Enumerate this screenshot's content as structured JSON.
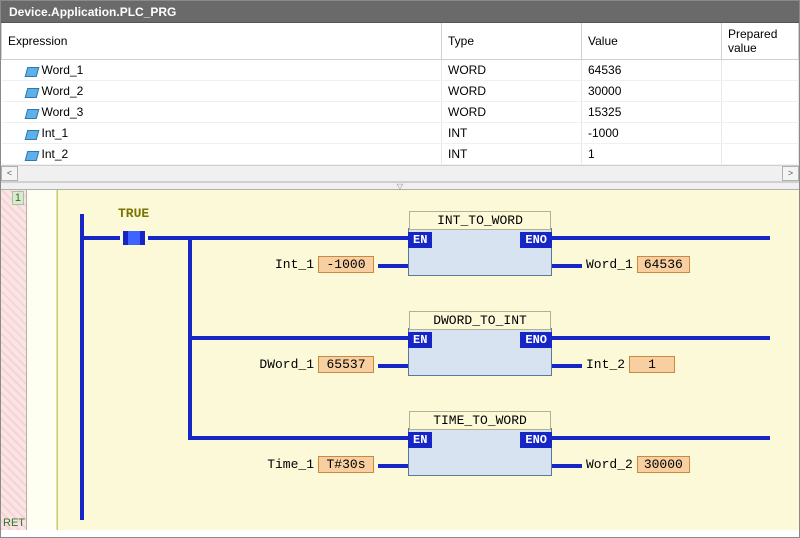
{
  "title": "Device.Application.PLC_PRG",
  "columns": {
    "expression": "Expression",
    "type": "Type",
    "value": "Value",
    "prepared": "Prepared value"
  },
  "variables": [
    {
      "name": "Word_1",
      "type": "WORD",
      "value": "64536",
      "prepared": ""
    },
    {
      "name": "Word_2",
      "type": "WORD",
      "value": "30000",
      "prepared": ""
    },
    {
      "name": "Word_3",
      "type": "WORD",
      "value": "15325",
      "prepared": ""
    },
    {
      "name": "Int_1",
      "type": "INT",
      "value": "-1000",
      "prepared": ""
    },
    {
      "name": "Int_2",
      "type": "INT",
      "value": "1",
      "prepared": ""
    }
  ],
  "gutter": {
    "network": "1",
    "ret": "RET"
  },
  "contact": {
    "label": "TRUE"
  },
  "pins": {
    "en": "EN",
    "eno": "ENO"
  },
  "blocks": [
    {
      "title": "INT_TO_WORD",
      "in": {
        "name": "Int_1",
        "value": "-1000"
      },
      "out": {
        "name": "Word_1",
        "value": "64536"
      }
    },
    {
      "title": "DWORD_TO_INT",
      "in": {
        "name": "DWord_1",
        "value": "65537"
      },
      "out": {
        "name": "Int_2",
        "value": "1"
      }
    },
    {
      "title": "TIME_TO_WORD",
      "in": {
        "name": "Time_1",
        "value": "T#30s"
      },
      "out": {
        "name": "Word_2",
        "value": "30000"
      }
    }
  ],
  "scroll": {
    "left_glyph": "<",
    "right_glyph": ">"
  },
  "splitter_glyph": "▽"
}
